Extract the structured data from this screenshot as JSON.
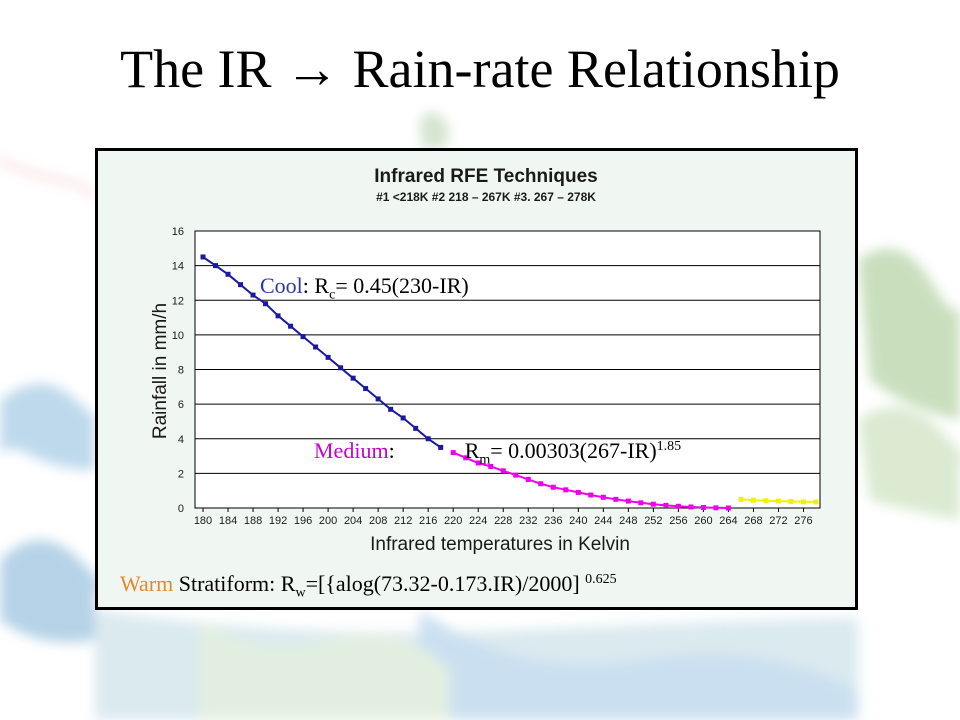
{
  "slide": {
    "title": "The IR → Rain-rate Relationship"
  },
  "chart_data": {
    "type": "line",
    "title": "Infrared RFE Techniques",
    "subtitle": "#1 <218K #2 218 – 267K #3. 267 – 278K",
    "xlabel": "Infrared temperatures in Kelvin",
    "ylabel": "Rainfall in mm/h",
    "xlim": [
      180,
      278
    ],
    "ylim": [
      0,
      16
    ],
    "yticks": [
      0,
      2,
      4,
      6,
      8,
      10,
      12,
      14,
      16
    ],
    "xticks": [
      180,
      184,
      188,
      192,
      196,
      200,
      204,
      208,
      212,
      216,
      220,
      224,
      228,
      232,
      236,
      240,
      244,
      248,
      252,
      256,
      260,
      264,
      268,
      272,
      276
    ],
    "grid": "horizontal",
    "series": [
      {
        "color": "#1a1aa0",
        "x": [
          180,
          182,
          184,
          186,
          188,
          190,
          192,
          194,
          196,
          198,
          200,
          202,
          204,
          206,
          208,
          210,
          212,
          214,
          216,
          218
        ],
        "y": [
          14.5,
          14.0,
          13.5,
          12.9,
          12.3,
          11.8,
          11.1,
          10.5,
          9.9,
          9.3,
          8.7,
          8.1,
          7.5,
          6.9,
          6.3,
          5.7,
          5.2,
          4.6,
          4.0,
          3.5
        ]
      },
      {
        "color": "#ee00ee",
        "x": [
          220,
          222,
          224,
          226,
          228,
          230,
          232,
          234,
          236,
          238,
          240,
          242,
          244,
          246,
          248,
          250,
          252,
          254,
          256,
          258,
          260,
          262,
          264
        ],
        "y": [
          3.2,
          2.9,
          2.6,
          2.4,
          2.15,
          1.9,
          1.65,
          1.4,
          1.2,
          1.05,
          0.9,
          0.75,
          0.62,
          0.5,
          0.4,
          0.3,
          0.22,
          0.15,
          0.1,
          0.06,
          0.03,
          0.01,
          0.0
        ]
      },
      {
        "color": "#f2f200",
        "x": [
          266,
          268,
          270,
          272,
          274,
          276,
          278
        ],
        "y": [
          0.5,
          0.45,
          0.42,
          0.4,
          0.38,
          0.36,
          0.35
        ]
      }
    ],
    "annotations": {
      "cool": {
        "label": "Cool",
        "colon": ":",
        "eq_a": " R",
        "sub": "c",
        "eq_b": "= 0.45(230-IR)",
        "color": "#2a3aa0"
      },
      "medium": {
        "label": "Medium",
        "colon": ":",
        "eq_a": "R",
        "sub": "m",
        "eq_b": "= 0.00303(267-IR)",
        "sup": "1.85",
        "color": "#cc00cc"
      },
      "warm": {
        "label": "Warm",
        "rest_a": " Stratiform: R",
        "sub": "w",
        "rest_b": "=[{alog(73.32-0.173.IR)/2000]",
        "sup": "0.625",
        "color": "#e8862a"
      }
    }
  }
}
